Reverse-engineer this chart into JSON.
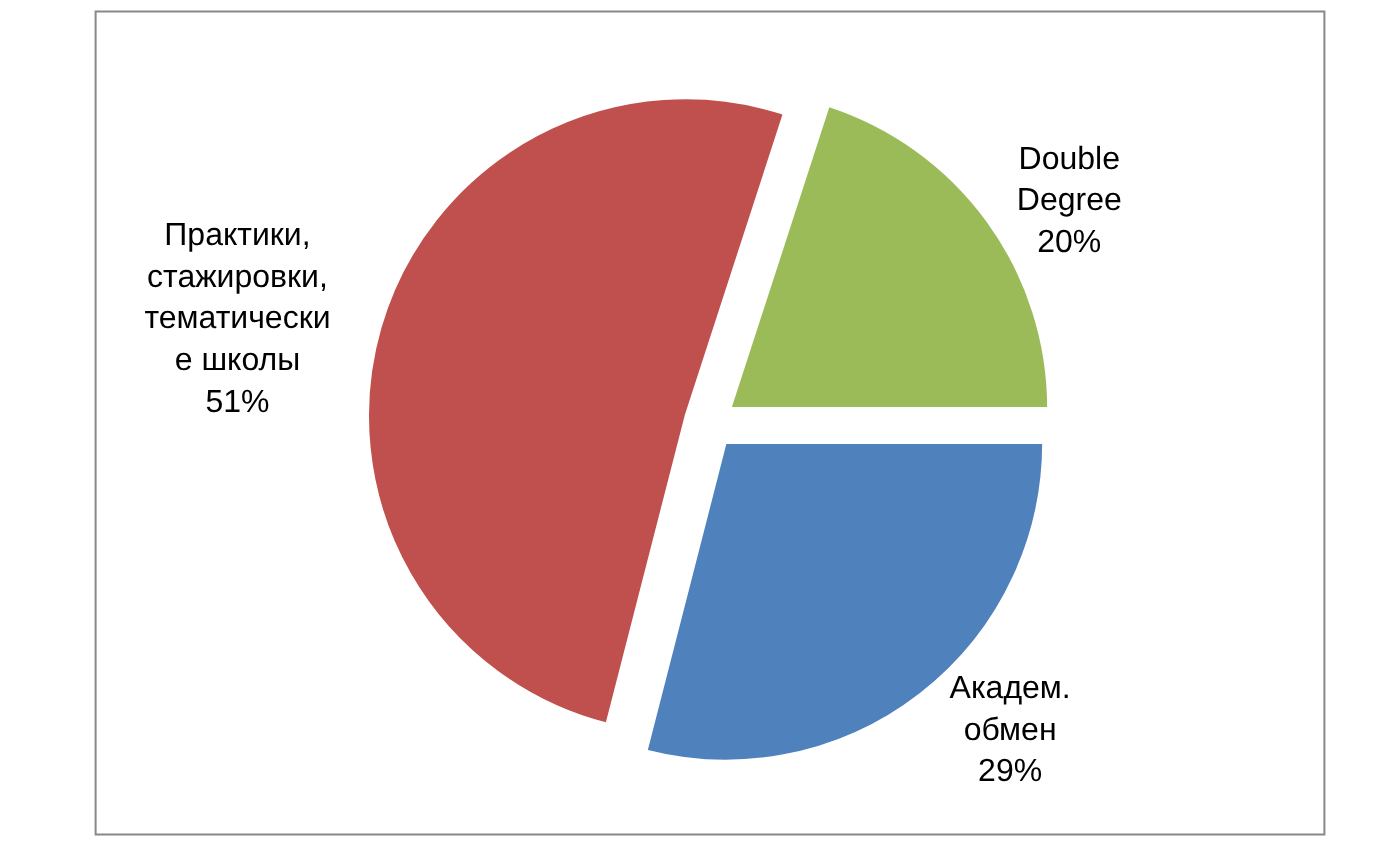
{
  "chart_data": {
    "type": "pie",
    "categories": [
      "Double\nDegree",
      "Академ.\nобмен",
      "Практики,\nстажировки,\nтематически\nе школы"
    ],
    "values": [
      20,
      29,
      51
    ],
    "colors": [
      "#9bbb59",
      "#4f81bd",
      "#c0504d"
    ],
    "value_labels": [
      "20%",
      "29%",
      "51%"
    ]
  }
}
